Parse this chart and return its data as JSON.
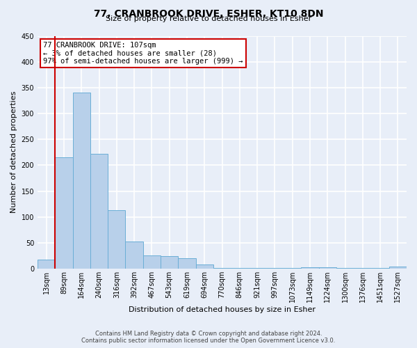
{
  "title": "77, CRANBROOK DRIVE, ESHER, KT10 8DN",
  "subtitle": "Size of property relative to detached houses in Esher",
  "xlabel": "Distribution of detached houses by size in Esher",
  "ylabel": "Number of detached properties",
  "bar_labels": [
    "13sqm",
    "89sqm",
    "164sqm",
    "240sqm",
    "316sqm",
    "392sqm",
    "467sqm",
    "543sqm",
    "619sqm",
    "694sqm",
    "770sqm",
    "846sqm",
    "921sqm",
    "997sqm",
    "1073sqm",
    "1149sqm",
    "1224sqm",
    "1300sqm",
    "1376sqm",
    "1451sqm",
    "1527sqm"
  ],
  "bar_values": [
    17,
    215,
    340,
    222,
    113,
    53,
    25,
    24,
    20,
    8,
    2,
    2,
    2,
    2,
    2,
    3,
    3,
    2,
    2,
    2,
    4
  ],
  "bar_color": "#b8d0ea",
  "bar_edge_color": "#6aaed6",
  "ylim": [
    0,
    450
  ],
  "yticks": [
    0,
    50,
    100,
    150,
    200,
    250,
    300,
    350,
    400,
    450
  ],
  "redline_bar_index": 1,
  "annotation_title": "77 CRANBROOK DRIVE: 107sqm",
  "annotation_line1": "← 3% of detached houses are smaller (28)",
  "annotation_line2": "97% of semi-detached houses are larger (999) →",
  "annotation_box_color": "#ffffff",
  "annotation_box_edge": "#cc0000",
  "footer1": "Contains HM Land Registry data © Crown copyright and database right 2024.",
  "footer2": "Contains public sector information licensed under the Open Government Licence v3.0.",
  "background_color": "#e8eef8",
  "plot_bg_color": "#e8eef8",
  "grid_color": "#ffffff",
  "red_line_color": "#cc0000",
  "title_fontsize": 10,
  "subtitle_fontsize": 8,
  "tick_fontsize": 7,
  "ylabel_fontsize": 8,
  "xlabel_fontsize": 8,
  "footer_fontsize": 6,
  "annotation_fontsize": 7.5
}
